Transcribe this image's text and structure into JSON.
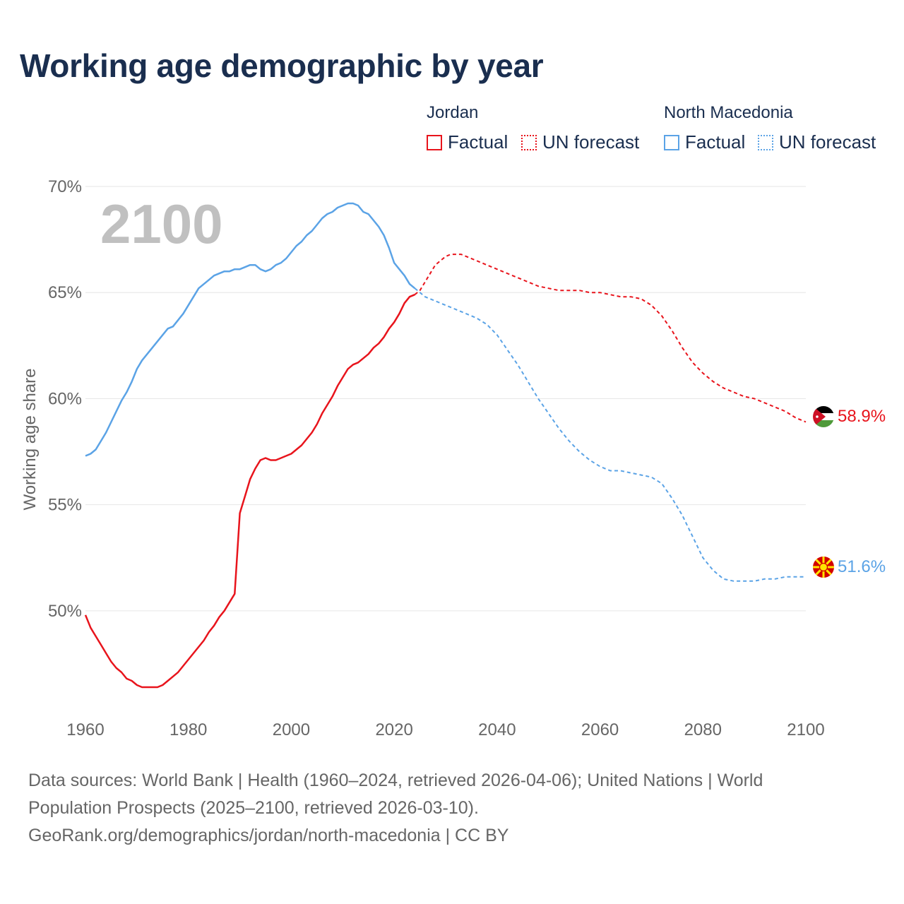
{
  "title": "Working age demographic by year",
  "legend": {
    "groups": [
      {
        "name": "Jordan",
        "factual_label": "Factual",
        "forecast_label": "UN forecast",
        "color": "#e8141c"
      },
      {
        "name": "North Macedonia",
        "factual_label": "Factual",
        "forecast_label": "UN forecast",
        "color": "#5ba3e6"
      }
    ]
  },
  "colors": {
    "jordan": "#e8141c",
    "north_macedonia": "#5ba3e6",
    "grid": "#e6e6e6",
    "text": "#1a2e4f",
    "muted": "#666666",
    "big_year": "#c0c0c0"
  },
  "chart_data": {
    "type": "line",
    "title": "Working age demographic by year",
    "xlabel": "",
    "ylabel": "Working age share",
    "xlim": [
      1960,
      2100
    ],
    "ylim": [
      45.5,
      70
    ],
    "x_ticks": [
      1960,
      1980,
      2000,
      2020,
      2040,
      2060,
      2080,
      2100
    ],
    "y_ticks": [
      50,
      55,
      60,
      65,
      70
    ],
    "y_tick_labels": [
      "50%",
      "55%",
      "60%",
      "65%",
      "70%"
    ],
    "current_year_label": "2100",
    "factual_range": [
      1960,
      2024
    ],
    "forecast_range": [
      2025,
      2100
    ],
    "series": [
      {
        "name": "Jordan",
        "color": "#e8141c",
        "end_label": "58.9%",
        "end_icon": "jordan-flag-icon",
        "x": [
          1960,
          1961,
          1962,
          1963,
          1964,
          1965,
          1966,
          1967,
          1968,
          1969,
          1970,
          1971,
          1972,
          1973,
          1974,
          1975,
          1976,
          1977,
          1978,
          1979,
          1980,
          1981,
          1982,
          1983,
          1984,
          1985,
          1986,
          1987,
          1988,
          1989,
          1990,
          1991,
          1992,
          1993,
          1994,
          1995,
          1996,
          1997,
          1998,
          1999,
          2000,
          2001,
          2002,
          2003,
          2004,
          2005,
          2006,
          2007,
          2008,
          2009,
          2010,
          2011,
          2012,
          2013,
          2014,
          2015,
          2016,
          2017,
          2018,
          2019,
          2020,
          2021,
          2022,
          2023,
          2024,
          2025,
          2026,
          2027,
          2028,
          2029,
          2030,
          2031,
          2032,
          2033,
          2034,
          2035,
          2036,
          2037,
          2038,
          2039,
          2040,
          2042,
          2044,
          2046,
          2048,
          2050,
          2052,
          2054,
          2056,
          2058,
          2060,
          2062,
          2064,
          2066,
          2068,
          2070,
          2072,
          2074,
          2076,
          2078,
          2080,
          2082,
          2084,
          2086,
          2088,
          2090,
          2092,
          2094,
          2096,
          2098,
          2100
        ],
        "y": [
          49.8,
          49.2,
          48.8,
          48.4,
          48.0,
          47.6,
          47.3,
          47.1,
          46.8,
          46.7,
          46.5,
          46.4,
          46.4,
          46.4,
          46.4,
          46.5,
          46.7,
          46.9,
          47.1,
          47.4,
          47.7,
          48.0,
          48.3,
          48.6,
          49.0,
          49.3,
          49.7,
          50.0,
          50.4,
          50.8,
          54.6,
          55.4,
          56.2,
          56.7,
          57.1,
          57.2,
          57.1,
          57.1,
          57.2,
          57.3,
          57.4,
          57.6,
          57.8,
          58.1,
          58.4,
          58.8,
          59.3,
          59.7,
          60.1,
          60.6,
          61.0,
          61.4,
          61.6,
          61.7,
          61.9,
          62.1,
          62.4,
          62.6,
          62.9,
          63.3,
          63.6,
          64.0,
          64.5,
          64.8,
          64.9,
          65.1,
          65.5,
          65.9,
          66.3,
          66.5,
          66.7,
          66.8,
          66.8,
          66.8,
          66.7,
          66.6,
          66.5,
          66.4,
          66.3,
          66.2,
          66.1,
          65.9,
          65.7,
          65.5,
          65.3,
          65.2,
          65.1,
          65.1,
          65.1,
          65.0,
          65.0,
          64.9,
          64.8,
          64.8,
          64.7,
          64.4,
          63.9,
          63.2,
          62.4,
          61.7,
          61.2,
          60.8,
          60.5,
          60.3,
          60.1,
          60.0,
          59.8,
          59.6,
          59.4,
          59.1,
          58.9
        ]
      },
      {
        "name": "North Macedonia",
        "color": "#5ba3e6",
        "end_label": "51.6%",
        "end_icon": "north-macedonia-flag-icon",
        "x": [
          1960,
          1961,
          1962,
          1963,
          1964,
          1965,
          1966,
          1967,
          1968,
          1969,
          1970,
          1971,
          1972,
          1973,
          1974,
          1975,
          1976,
          1977,
          1978,
          1979,
          1980,
          1981,
          1982,
          1983,
          1984,
          1985,
          1986,
          1987,
          1988,
          1989,
          1990,
          1991,
          1992,
          1993,
          1994,
          1995,
          1996,
          1997,
          1998,
          1999,
          2000,
          2001,
          2002,
          2003,
          2004,
          2005,
          2006,
          2007,
          2008,
          2009,
          2010,
          2011,
          2012,
          2013,
          2014,
          2015,
          2016,
          2017,
          2018,
          2019,
          2020,
          2021,
          2022,
          2023,
          2024,
          2025,
          2026,
          2027,
          2028,
          2029,
          2030,
          2032,
          2034,
          2036,
          2038,
          2040,
          2042,
          2044,
          2046,
          2048,
          2050,
          2052,
          2054,
          2056,
          2058,
          2060,
          2062,
          2064,
          2066,
          2068,
          2070,
          2072,
          2074,
          2076,
          2078,
          2080,
          2082,
          2084,
          2086,
          2088,
          2090,
          2092,
          2094,
          2096,
          2098,
          2100
        ],
        "y": [
          57.3,
          57.4,
          57.6,
          58.0,
          58.4,
          58.9,
          59.4,
          59.9,
          60.3,
          60.8,
          61.4,
          61.8,
          62.1,
          62.4,
          62.7,
          63.0,
          63.3,
          63.4,
          63.7,
          64.0,
          64.4,
          64.8,
          65.2,
          65.4,
          65.6,
          65.8,
          65.9,
          66.0,
          66.0,
          66.1,
          66.1,
          66.2,
          66.3,
          66.3,
          66.1,
          66.0,
          66.1,
          66.3,
          66.4,
          66.6,
          66.9,
          67.2,
          67.4,
          67.7,
          67.9,
          68.2,
          68.5,
          68.7,
          68.8,
          69.0,
          69.1,
          69.2,
          69.2,
          69.1,
          68.8,
          68.7,
          68.4,
          68.1,
          67.7,
          67.1,
          66.4,
          66.1,
          65.8,
          65.4,
          65.2,
          65.0,
          64.8,
          64.7,
          64.6,
          64.5,
          64.4,
          64.2,
          64.0,
          63.8,
          63.5,
          63.0,
          62.3,
          61.6,
          60.8,
          60.0,
          59.3,
          58.6,
          58.0,
          57.5,
          57.1,
          56.8,
          56.6,
          56.6,
          56.5,
          56.4,
          56.3,
          56.0,
          55.3,
          54.5,
          53.5,
          52.5,
          51.9,
          51.5,
          51.4,
          51.4,
          51.4,
          51.5,
          51.5,
          51.6,
          51.6,
          51.6
        ]
      }
    ]
  },
  "footer": {
    "line1": "Data sources: World Bank | Health (1960–2024, retrieved 2026-04-06); United Nations | World",
    "line2": "Population Prospects (2025–2100, retrieved 2026-03-10).",
    "line3": "GeoRank.org/demographics/jordan/north-macedonia | CC BY"
  }
}
